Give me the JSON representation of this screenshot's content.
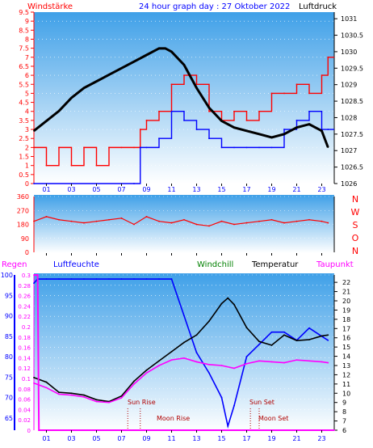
{
  "header": {
    "left_label": "Windstärke",
    "title": "24 hour graph day : 27 Oktober 2022",
    "right_label": "Luftdruck"
  },
  "x_ticks": [
    "01",
    "03",
    "05",
    "07",
    "09",
    "11",
    "13",
    "15",
    "17",
    "19",
    "21",
    "23"
  ],
  "labels_bottom_header": {
    "regen": "Regen",
    "luftfeuchte": "Luftfeuchte",
    "windchill": "Windchill",
    "temperatur": "Temperatur",
    "taupunkt": "Taupunkt"
  },
  "compass": [
    "N",
    "W",
    "S",
    "O",
    "N"
  ],
  "annotations": {
    "sun_rise": "Sun Rise",
    "moon_rise": "Moon Rise",
    "sun_set": "Sun Set",
    "moon_set": "Moon Set"
  },
  "colors": {
    "plot_top": "#3fa0e8",
    "plot_bottom": "#ffffff",
    "wind_speed": "#ff0000",
    "wind_gust": "#0000ff",
    "pressure": "#000000",
    "humidity": "#0000ff",
    "temperature": "#000000",
    "dewpoint": "#ff00ff",
    "rain": "#ff00ff",
    "axis_left_red": "#ff0000",
    "axis_blue": "#0000ff"
  },
  "chart_data": [
    {
      "type": "line",
      "panel": "wind_pressure",
      "x_range": [
        0,
        24
      ],
      "left_axis": {
        "ticks": [
          "0",
          "0.5",
          "1",
          "1.5",
          "2",
          "2.5",
          "3",
          "3.5",
          "4",
          "4.5",
          "5",
          "5.5",
          "6",
          "6.5",
          "7",
          "7.5",
          "8",
          "8.5",
          "9",
          "9.5"
        ],
        "range": [
          0,
          9.5
        ]
      },
      "right_axis": {
        "ticks": [
          "1026",
          "1026.5",
          "1027",
          "1027.5",
          "1028",
          "1028.5",
          "1029",
          "1029.5",
          "1030",
          "1030.5",
          "1031"
        ],
        "range": [
          1026,
          1031.2
        ]
      },
      "series": [
        {
          "name": "",
          "axis": "left",
          "style": "step-red",
          "x": [
            0,
            1,
            2,
            3,
            4,
            5,
            6,
            7,
            8,
            8.5,
            9,
            10,
            11,
            12,
            13,
            14,
            15,
            16,
            17,
            18,
            19,
            20,
            21,
            22,
            23,
            23.5
          ],
          "y": [
            2,
            1,
            2,
            1,
            2,
            1,
            2,
            2,
            2,
            3,
            3.5,
            4,
            5.5,
            6,
            5.5,
            4,
            3.5,
            4,
            3.5,
            4,
            5,
            5,
            5.5,
            5,
            6,
            7
          ]
        },
        {
          "name": "",
          "axis": "left",
          "style": "step-blue",
          "x": [
            0,
            8,
            8.5,
            9,
            10,
            11,
            12,
            13,
            14,
            15,
            16,
            17,
            18,
            19,
            20,
            21,
            22,
            23,
            23.5
          ],
          "y": [
            0,
            0,
            2,
            2,
            2.5,
            4,
            3.5,
            3,
            2.5,
            2,
            2,
            2,
            2,
            2,
            3,
            3.5,
            4,
            3,
            3
          ]
        },
        {
          "name": "",
          "axis": "right",
          "style": "line-black",
          "x": [
            0,
            1,
            2,
            3,
            4,
            5,
            6,
            7,
            8,
            9,
            10,
            10.5,
            11,
            12,
            13,
            14,
            15,
            16,
            17,
            18,
            19,
            20,
            21,
            22,
            23,
            23.5
          ],
          "y": [
            1027.6,
            1027.9,
            1028.2,
            1028.6,
            1028.9,
            1029.1,
            1029.3,
            1029.5,
            1029.7,
            1029.9,
            1030.1,
            1030.1,
            1030.0,
            1029.6,
            1028.9,
            1028.3,
            1027.9,
            1027.7,
            1027.6,
            1027.5,
            1027.4,
            1027.5,
            1027.7,
            1027.8,
            1027.6,
            1027.1
          ]
        }
      ]
    },
    {
      "type": "line",
      "panel": "wind_direction",
      "x_range": [
        0,
        24
      ],
      "left_axis": {
        "ticks": [
          "0",
          "90",
          "180",
          "270",
          "360"
        ],
        "range": [
          0,
          360
        ]
      },
      "series": [
        {
          "name": "",
          "style": "red",
          "x": [
            0,
            1,
            2,
            3,
            4,
            5,
            6,
            7,
            8,
            9,
            10,
            11,
            12,
            13,
            14,
            15,
            16,
            17,
            18,
            19,
            20,
            21,
            22,
            23,
            23.5
          ],
          "y": [
            200,
            230,
            210,
            200,
            190,
            200,
            210,
            220,
            180,
            230,
            200,
            190,
            210,
            180,
            170,
            200,
            180,
            190,
            200,
            210,
            190,
            200,
            210,
            200,
            190
          ]
        }
      ]
    },
    {
      "type": "line",
      "panel": "temp_humidity",
      "x_range": [
        0,
        24
      ],
      "left_axis_humidity": {
        "ticks": [
          "65",
          "70",
          "75",
          "80",
          "85",
          "90",
          "95",
          "100"
        ],
        "range": [
          62,
          100
        ]
      },
      "left_axis_rain": {
        "ticks": [
          "0",
          "0.02",
          "0.04",
          "0.06",
          "0.08",
          "0.1",
          "0.12",
          "0.14",
          "0.16",
          "0.18",
          "0.2",
          "0.22",
          "0.24",
          "0.26",
          "0.28",
          "0.3"
        ],
        "range": [
          0,
          0.3
        ]
      },
      "right_axis_temp": {
        "ticks": [
          "6",
          "7",
          "8",
          "9",
          "10",
          "11",
          "12",
          "13",
          "14",
          "15",
          "16",
          "17",
          "18",
          "19",
          "20",
          "21",
          "22"
        ],
        "range": [
          6,
          22.8
        ]
      },
      "series": [
        {
          "name": "Luftfeuchte",
          "axis": "humidity",
          "x": [
            0,
            0.3,
            1,
            2,
            3,
            4,
            5,
            6,
            7,
            8,
            9,
            10,
            11,
            12,
            13,
            14,
            15,
            15.5,
            16,
            17,
            18,
            19,
            20,
            21,
            22,
            23,
            23.5
          ],
          "y": [
            98,
            99,
            99,
            99,
            99,
            99,
            99,
            99,
            99,
            99,
            99,
            99,
            99,
            90,
            81,
            76,
            70,
            63,
            68,
            80,
            83,
            86,
            86,
            84,
            87,
            85,
            84
          ]
        },
        {
          "name": "Temperatur",
          "axis": "temp",
          "x": [
            0,
            1,
            2,
            3,
            4,
            5,
            6,
            7,
            8,
            9,
            10,
            11,
            12,
            13,
            14,
            15,
            15.5,
            16,
            17,
            18,
            19,
            20,
            21,
            22,
            23,
            23.5
          ],
          "y": [
            11.7,
            11.2,
            10.1,
            10.0,
            9.8,
            9.3,
            9.1,
            9.7,
            11.3,
            12.5,
            13.5,
            14.5,
            15.5,
            16.3,
            17.8,
            19.7,
            20.3,
            19.6,
            17.1,
            15.6,
            15.2,
            16.3,
            15.7,
            15.8,
            16.2,
            16.3
          ]
        },
        {
          "name": "Taupunkt",
          "axis": "temp",
          "x": [
            0,
            1,
            2,
            3,
            4,
            5,
            6,
            7,
            8,
            9,
            10,
            11,
            12,
            13,
            14,
            15,
            16,
            17,
            18,
            19,
            20,
            21,
            22,
            23,
            23.5
          ],
          "y": [
            11.1,
            10.6,
            9.9,
            9.8,
            9.6,
            9.1,
            9.0,
            9.5,
            11.0,
            12.2,
            13.0,
            13.6,
            13.8,
            13.4,
            13.1,
            13.0,
            12.7,
            13.2,
            13.5,
            13.4,
            13.3,
            13.6,
            13.5,
            13.4,
            13.3
          ]
        },
        {
          "name": "Regen",
          "axis": "rain",
          "x": [
            0,
            0.3,
            0.4,
            24
          ],
          "y": [
            0.3,
            0.3,
            0.0,
            0.0
          ]
        }
      ]
    }
  ]
}
